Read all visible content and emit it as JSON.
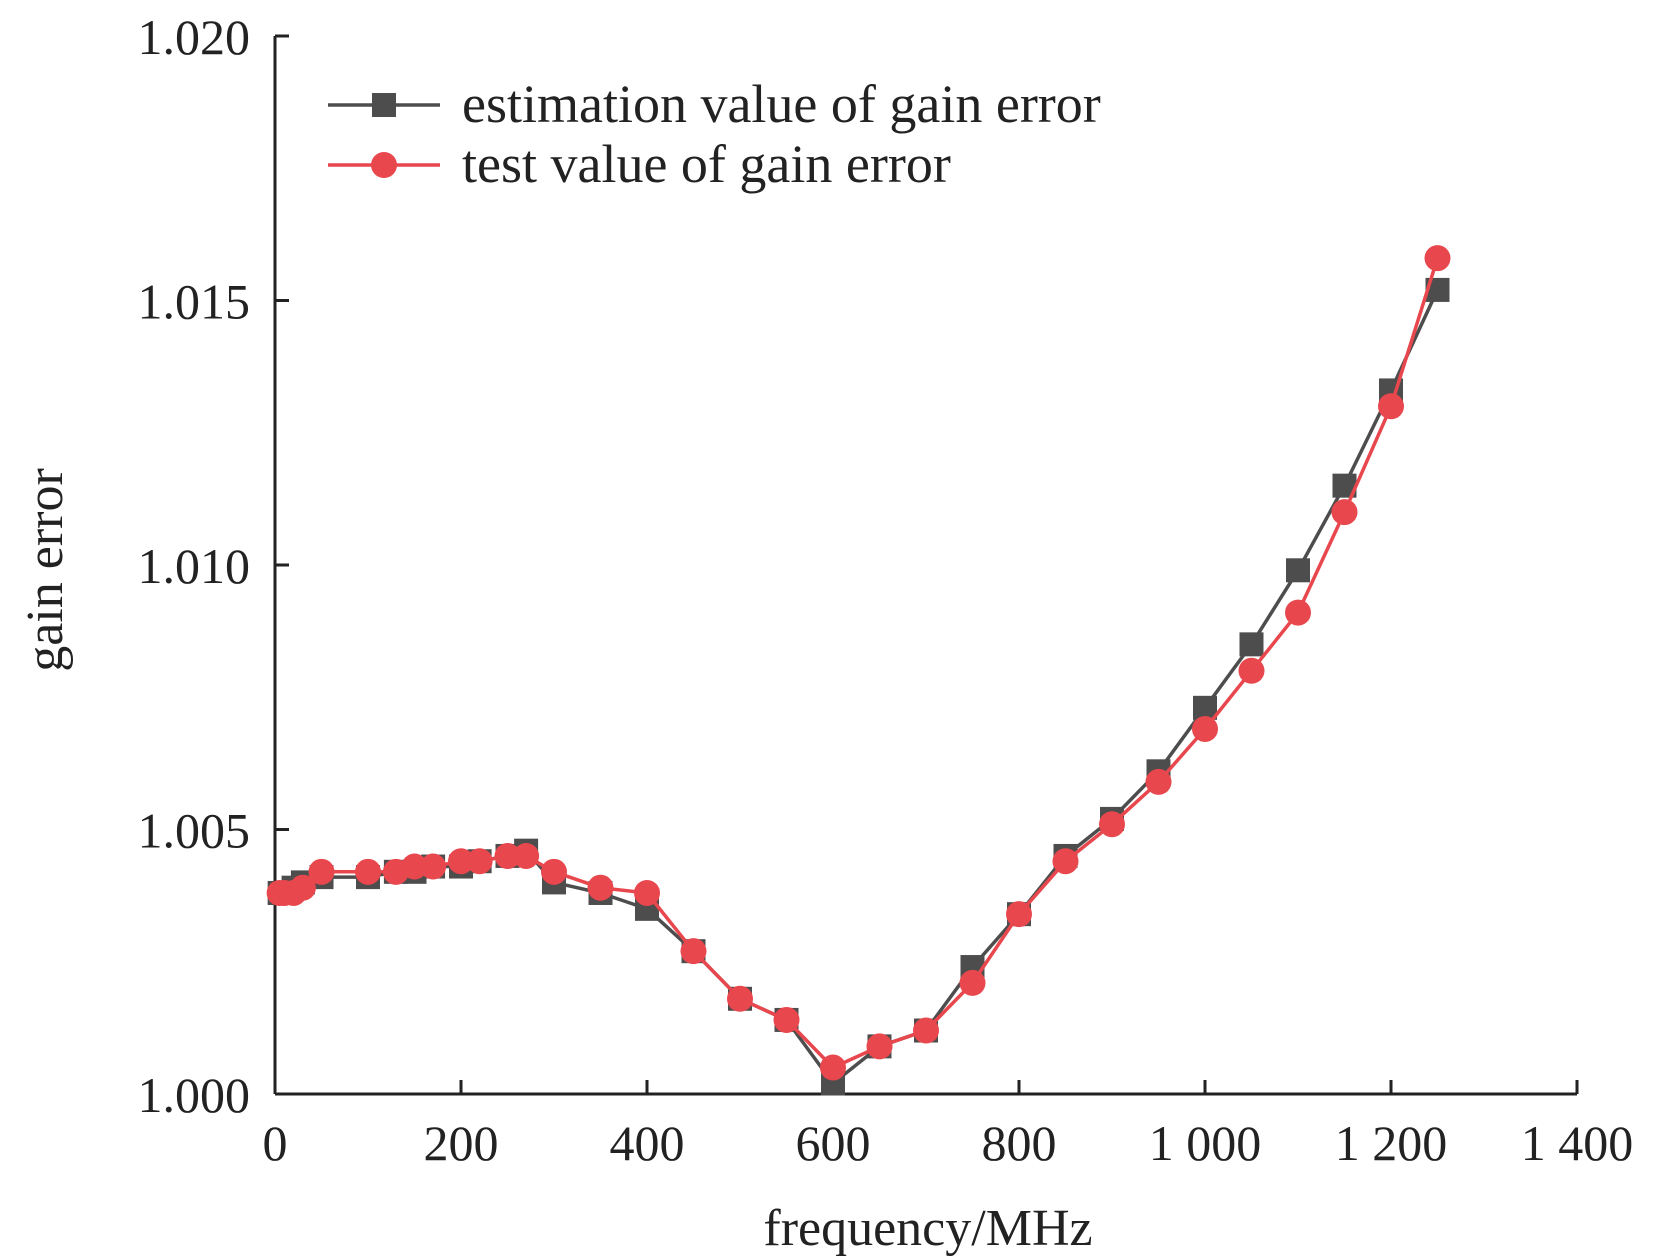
{
  "chart_data": {
    "type": "line",
    "xlabel": "frequency/MHz",
    "ylabel": "gain error",
    "xlim": [
      0,
      1400
    ],
    "ylim": [
      1.0,
      1.02
    ],
    "x_ticks": [
      0,
      200,
      400,
      600,
      800,
      1000,
      1200,
      1400
    ],
    "x_tick_labels": [
      "0",
      "200",
      "400",
      "600",
      "800",
      "1 000",
      "1 200",
      "1 400"
    ],
    "y_ticks": [
      1.0,
      1.005,
      1.01,
      1.015,
      1.02
    ],
    "y_tick_labels": [
      "1.000",
      "1.005",
      "1.010",
      "1.015",
      "1.020"
    ],
    "grid": false,
    "legend_position": "top-left",
    "series": [
      {
        "name": "estimation value of gain error",
        "color": "#4d4d4d",
        "marker": "square",
        "x": [
          5,
          10,
          20,
          30,
          50,
          100,
          130,
          150,
          170,
          200,
          220,
          250,
          270,
          300,
          350,
          400,
          450,
          500,
          550,
          600,
          650,
          700,
          750,
          800,
          850,
          900,
          950,
          1000,
          1050,
          1100,
          1150,
          1200,
          1250
        ],
        "y": [
          1.0038,
          1.0038,
          1.0039,
          1.004,
          1.0041,
          1.0041,
          1.0042,
          1.0042,
          1.0043,
          1.0043,
          1.0044,
          1.0045,
          1.0046,
          1.004,
          1.0038,
          1.0035,
          1.0027,
          1.0018,
          1.0014,
          1.0002,
          1.0009,
          1.0012,
          1.0024,
          1.0034,
          1.0045,
          1.0052,
          1.0061,
          1.0073,
          1.0085,
          1.0099,
          1.0115,
          1.0133,
          1.0152
        ]
      },
      {
        "name": "test value of gain error",
        "color": "#e8474d",
        "marker": "circle",
        "x": [
          5,
          10,
          20,
          30,
          50,
          100,
          130,
          150,
          170,
          200,
          220,
          250,
          270,
          300,
          350,
          400,
          450,
          500,
          550,
          600,
          650,
          700,
          750,
          800,
          850,
          900,
          950,
          1000,
          1050,
          1100,
          1150,
          1200,
          1250
        ],
        "y": [
          1.0038,
          1.0038,
          1.0038,
          1.0039,
          1.0042,
          1.0042,
          1.0042,
          1.0043,
          1.0043,
          1.0044,
          1.0044,
          1.0045,
          1.0045,
          1.0042,
          1.0039,
          1.0038,
          1.0027,
          1.0018,
          1.0014,
          1.0005,
          1.0009,
          1.0012,
          1.0021,
          1.0034,
          1.0044,
          1.0051,
          1.0059,
          1.0069,
          1.008,
          1.0091,
          1.011,
          1.013,
          1.0158
        ]
      }
    ]
  }
}
